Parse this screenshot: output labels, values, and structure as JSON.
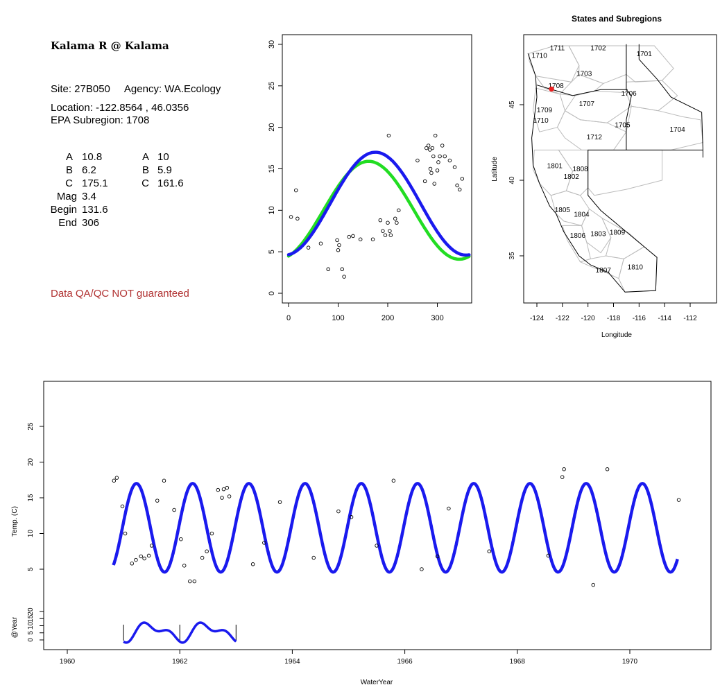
{
  "site_info": {
    "title": "Kalama R @ Kalama",
    "site_line": "Site: 27B050     Agency: WA.Ecology",
    "location_line": "Location: -122.8564 , 46.0356",
    "subregion_line": "EPA Subregion: 1708",
    "params": [
      {
        "label": "A",
        "value": "10.8",
        "label2": "A",
        "value2": "10"
      },
      {
        "label": "B",
        "value": "6.2",
        "label2": "B",
        "value2": "5.9"
      },
      {
        "label": "C",
        "value": "175.1",
        "label2": "C",
        "value2": "161.6"
      },
      {
        "label": "Mag",
        "value": "3.4",
        "label2": "",
        "value2": ""
      },
      {
        "label": "Begin",
        "value": "131.6",
        "label2": "",
        "value2": ""
      },
      {
        "label": "End",
        "value": "306",
        "label2": "",
        "value2": ""
      }
    ],
    "qa_note": "Data QA/QC NOT guaranteed"
  },
  "colors": {
    "blue": "#1a1aee",
    "green": "#22dd22",
    "red": "#ee2222",
    "note": "#b03030",
    "boundary": "#bbbbbb"
  },
  "chart_data": [
    {
      "type": "scatter",
      "title": "",
      "xlabel": "",
      "ylabel": "",
      "xlim": [
        0,
        365
      ],
      "ylim": [
        0,
        31
      ],
      "x_ticks": [
        0,
        100,
        200,
        300
      ],
      "y_ticks": [
        0,
        5,
        10,
        15,
        20,
        25,
        30
      ],
      "points": [
        [
          5,
          9.2
        ],
        [
          15,
          12.4
        ],
        [
          18,
          9
        ],
        [
          40,
          5.5
        ],
        [
          65,
          6
        ],
        [
          80,
          2.9
        ],
        [
          98,
          6.4
        ],
        [
          100,
          5.2
        ],
        [
          102,
          5.8
        ],
        [
          108,
          2.9
        ],
        [
          112,
          2
        ],
        [
          122,
          6.8
        ],
        [
          130,
          6.9
        ],
        [
          145,
          6.5
        ],
        [
          170,
          6.5
        ],
        [
          185,
          8.8
        ],
        [
          190,
          7.5
        ],
        [
          195,
          7
        ],
        [
          200,
          8.5
        ],
        [
          202,
          19
        ],
        [
          204,
          7.5
        ],
        [
          206,
          7
        ],
        [
          215,
          9
        ],
        [
          218,
          8.5
        ],
        [
          222,
          10
        ],
        [
          260,
          16
        ],
        [
          275,
          13.5
        ],
        [
          278,
          17.5
        ],
        [
          282,
          17.8
        ],
        [
          285,
          17.3
        ],
        [
          286,
          15
        ],
        [
          288,
          14.5
        ],
        [
          290,
          17.5
        ],
        [
          292,
          16.5
        ],
        [
          294,
          13.2
        ],
        [
          296,
          19
        ],
        [
          300,
          14.8
        ],
        [
          302,
          15.8
        ],
        [
          305,
          16.5
        ],
        [
          310,
          17.8
        ],
        [
          315,
          16.5
        ],
        [
          325,
          16
        ],
        [
          335,
          15.2
        ],
        [
          340,
          13
        ],
        [
          345,
          12.5
        ],
        [
          350,
          13.8
        ]
      ],
      "series": [
        {
          "color": "green",
          "A": 10,
          "B": 5.9,
          "C": 161.6
        },
        {
          "color": "blue",
          "A": 10.8,
          "B": 6.2,
          "C": 175.1
        }
      ]
    },
    {
      "type": "map",
      "title": "States and Subregions",
      "xlabel": "Longitude",
      "ylabel": "Latitude",
      "xlim": [
        -125.3,
        -110.5
      ],
      "ylim": [
        32.4,
        49.6
      ],
      "x_ticks": [
        -124,
        -122,
        -120,
        -118,
        -116,
        -114,
        -112
      ],
      "y_ticks": [
        35,
        40,
        45
      ],
      "site": {
        "lon": -122.8564,
        "lat": 46.0356
      },
      "regions": [
        {
          "label": "1711",
          "lon": -122.4,
          "lat": 48.6
        },
        {
          "label": "1702",
          "lon": -119.2,
          "lat": 48.6
        },
        {
          "label": "1701",
          "lon": -115.6,
          "lat": 48.2
        },
        {
          "label": "1710",
          "lon": -123.8,
          "lat": 48.1
        },
        {
          "label": "1703",
          "lon": -120.3,
          "lat": 46.9
        },
        {
          "label": "1708",
          "lon": -122.5,
          "lat": 46.1
        },
        {
          "label": "1706",
          "lon": -116.8,
          "lat": 45.6
        },
        {
          "label": "1707",
          "lon": -120.1,
          "lat": 44.9
        },
        {
          "label": "1709",
          "lon": -123.4,
          "lat": 44.5
        },
        {
          "label": "1710",
          "lon": -123.7,
          "lat": 43.8
        },
        {
          "label": "1705",
          "lon": -117.3,
          "lat": 43.5
        },
        {
          "label": "1704",
          "lon": -113.0,
          "lat": 43.2
        },
        {
          "label": "1712",
          "lon": -119.5,
          "lat": 42.7
        },
        {
          "label": "1801",
          "lon": -122.6,
          "lat": 40.8
        },
        {
          "label": "1808",
          "lon": -120.6,
          "lat": 40.6
        },
        {
          "label": "1802",
          "lon": -121.3,
          "lat": 40.1
        },
        {
          "label": "1805",
          "lon": -122.0,
          "lat": 37.9
        },
        {
          "label": "1804",
          "lon": -120.5,
          "lat": 37.6
        },
        {
          "label": "1806",
          "lon": -120.8,
          "lat": 36.2
        },
        {
          "label": "1803",
          "lon": -119.2,
          "lat": 36.3
        },
        {
          "label": "1809",
          "lon": -117.7,
          "lat": 36.4
        },
        {
          "label": "1807",
          "lon": -118.8,
          "lat": 33.9
        },
        {
          "label": "1810",
          "lon": -116.3,
          "lat": 34.1
        }
      ]
    },
    {
      "type": "line",
      "title": "",
      "xlabel": "WaterYear",
      "ylabel": "Temp. (C)",
      "xlim": [
        1959.6,
        1971.4
      ],
      "ylim": [
        0,
        30
      ],
      "x_ticks": [
        1960,
        1962,
        1964,
        1966,
        1968,
        1970
      ],
      "y_ticks": [
        5,
        10,
        15,
        20,
        25
      ],
      "fit": {
        "A": 10.8,
        "B": 6.2,
        "C": 175.1,
        "start": 1960.82,
        "end": 1970.85
      },
      "points": [
        [
          1960.83,
          17.4
        ],
        [
          1960.88,
          17.8
        ],
        [
          1960.98,
          13.8
        ],
        [
          1961.03,
          10
        ],
        [
          1961.15,
          5.8
        ],
        [
          1961.22,
          6.3
        ],
        [
          1961.31,
          6.8
        ],
        [
          1961.37,
          6.5
        ],
        [
          1961.45,
          6.9
        ],
        [
          1961.5,
          8.3
        ],
        [
          1961.6,
          14.6
        ],
        [
          1961.72,
          17.4
        ],
        [
          1961.9,
          13.3
        ],
        [
          1962.02,
          9.2
        ],
        [
          1962.08,
          5.5
        ],
        [
          1962.18,
          3.3
        ],
        [
          1962.26,
          3.3
        ],
        [
          1962.4,
          6.6
        ],
        [
          1962.48,
          7.5
        ],
        [
          1962.57,
          10
        ],
        [
          1962.68,
          16.1
        ],
        [
          1962.75,
          15
        ],
        [
          1962.78,
          16.2
        ],
        [
          1962.84,
          16.4
        ],
        [
          1962.88,
          15.2
        ],
        [
          1963.3,
          5.7
        ],
        [
          1963.5,
          8.7
        ],
        [
          1963.78,
          14.4
        ],
        [
          1964.38,
          6.6
        ],
        [
          1964.82,
          13.1
        ],
        [
          1965.05,
          12.3
        ],
        [
          1965.5,
          8.3
        ],
        [
          1965.8,
          17.4
        ],
        [
          1966.3,
          5
        ],
        [
          1966.58,
          6.8
        ],
        [
          1966.78,
          13.5
        ],
        [
          1967.5,
          7.5
        ],
        [
          1968.55,
          6.9
        ],
        [
          1968.8,
          17.9
        ],
        [
          1968.83,
          19
        ],
        [
          1969.35,
          2.8
        ],
        [
          1969.6,
          19
        ],
        [
          1970.87,
          14.7
        ]
      ]
    },
    {
      "type": "line",
      "title": "",
      "xlabel": "",
      "ylabel": "@Year",
      "xlim": [
        1959.6,
        1971.4
      ],
      "ylim": [
        -2,
        24
      ],
      "y_ticks": [
        0,
        5,
        10,
        15,
        20
      ],
      "segment": {
        "start": 1961.0,
        "end": 1963.0
      },
      "year_marks": [
        1961,
        1962,
        1963
      ]
    }
  ]
}
